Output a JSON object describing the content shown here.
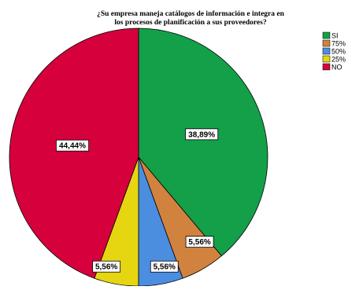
{
  "chart_data": {
    "type": "pie",
    "title_lines": [
      "¿Su empresa maneja catálogos de información e integra en",
      "los procesos de planificación a sus proveedores?"
    ],
    "categories": [
      "SI",
      "75%",
      "50%",
      "25%",
      "NO"
    ],
    "values": [
      38.89,
      5.56,
      5.56,
      5.56,
      44.44
    ],
    "data_labels": [
      "38,89%",
      "5,56%",
      "5,56%",
      "5,56%",
      "44,44%"
    ],
    "colors": [
      "#13a049",
      "#d1823f",
      "#4b8ee0",
      "#e6d612",
      "#d6003c"
    ],
    "start_angle": "top",
    "direction": "clockwise",
    "legend_position": "top-right"
  }
}
